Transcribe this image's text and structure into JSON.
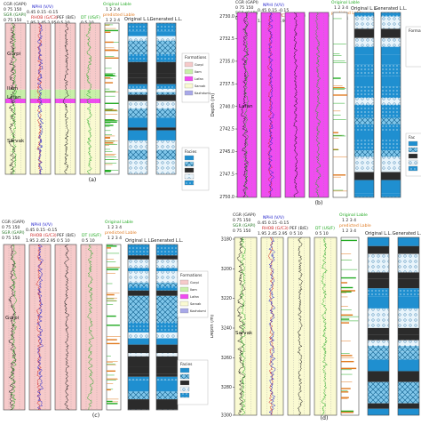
{
  "figure": {
    "panels": [
      {
        "id": "a",
        "caption": "(a)",
        "depth_axis": {
          "label": "",
          "ticks": [],
          "shown": false
        },
        "headers": {
          "cgr": "CGR (GAPI)",
          "cgr_range": "0    75   150",
          "sgr": "SGR (GAPI)",
          "sgr_range": "0    75   150",
          "nphi": "NPHI (V/V)",
          "nphi_range": "0.45  0.15 -0.15",
          "rhob": "RHOB (G/C3)",
          "rhob_range": "1.95  2.45  2.95",
          "pef": "PEF (B/E)",
          "pef_range": "0   5   10",
          "dt": "DT (US/F)",
          "dt_range": "0   5   10",
          "orig_label": "Original Lable",
          "orig_scale": "1  2  3  4",
          "pred_label": "predicted Lable",
          "pred_scale": "1  2  3  4",
          "col_orig": "Original L.L.",
          "col_gen": "Generated L.L."
        },
        "formations": [
          "Gurpi",
          "Ilam",
          "Lafan",
          "Sarvak"
        ],
        "formation_legend": {
          "title": "Formations",
          "items": [
            "Gurpi",
            "Ilam",
            "Lafan",
            "Sarvak",
            "Kazhdumi"
          ]
        },
        "facies_legend": {
          "title": "Facies",
          "items": [
            "",
            "",
            "",
            "",
            ""
          ]
        }
      },
      {
        "id": "b",
        "caption": "(b)",
        "depth_axis": {
          "label": "Depth (m)",
          "ticks": [
            "2730.0",
            "2732.5",
            "2735.0",
            "2737.5",
            "2740.0",
            "2742.5",
            "2745.0",
            "2747.5",
            "2750.0"
          ],
          "shown": true
        },
        "headers": {
          "cgr": "CGR (GAPI)",
          "cgr_range": "0    75   150",
          "sgr": "SGR (GAPI)",
          "sgr_range": "0    75   150",
          "nphi": "NPHI (V/V)",
          "nphi_range": "0.45  0.15 -0.15",
          "rhob": "RHOB (G/C3)",
          "rhob_range": "1.95  2.45  2.95",
          "pef": "PEF (B/E)",
          "pef_range": "0   5   10",
          "dt": "DT (US/F)",
          "dt_range": "0   5   10",
          "orig_label": "Original Lable",
          "orig_scale": "1  2  3  4",
          "pred_label": "predicted Lable",
          "pred_scale": "1  2  3  4",
          "col_orig": "Original L.L.",
          "col_gen": "Generated L.L."
        },
        "formations": [
          "Lafan"
        ],
        "formation_legend": {
          "title": "Format",
          "items": []
        },
        "facies_legend": {
          "title": "Fac",
          "items": []
        }
      },
      {
        "id": "c",
        "caption": "(c)",
        "depth_axis": {
          "label": "",
          "ticks": [],
          "shown": false
        },
        "headers": {
          "cgr": "CGR (GAPI)",
          "cgr_range": "0    75   150",
          "sgr": "SGR (GAPI)",
          "sgr_range": "0    75   150",
          "nphi": "NPHI (V/V)",
          "nphi_range": "0.45  0.15 -0.15",
          "rhob": "RHOB (G/C3)",
          "rhob_range": "1.95  2.45  2.95",
          "pef": "PEF (B/E)",
          "pef_range": "0   5   10",
          "dt": "DT (US/F)",
          "dt_range": "0   5   10",
          "orig_label": "Original Lable",
          "orig_scale": "1  2  3  4",
          "pred_label": "predicted Lable",
          "pred_scale": "1  2  3  4",
          "col_orig": "Original L.L.",
          "col_gen": "Generated L.L."
        },
        "formations": [
          "Gurpi"
        ],
        "formation_legend": {
          "title": "Formations",
          "items": [
            "Gurpi",
            "Ilam",
            "Lafan",
            "Sarvak",
            "Kazhdumi"
          ]
        },
        "facies_legend": {
          "title": "Facies",
          "items": [
            "",
            "",
            "",
            "",
            ""
          ]
        }
      },
      {
        "id": "d",
        "caption": "(d)",
        "depth_axis": {
          "label": "Depth (m)",
          "ticks": [
            "3180",
            "3200",
            "3220",
            "3240",
            "3260",
            "3280",
            "3300"
          ],
          "shown": true
        },
        "headers": {
          "cgr": "CGR (GAPI)",
          "cgr_range": "0    75   150",
          "sgr": "SGR (GAPI)",
          "sgr_range": "0    75   150",
          "nphi": "NPHI (V/V)",
          "nphi_range": "0.45  0.15 -0.15",
          "rhob": "RHOB (G/C3)",
          "rhob_range": "1.95  2.45  2.95",
          "pef": "PEF (B/E)",
          "pef_range": "0   5   10",
          "dt": "DT (US/F)",
          "dt_range": "0   5   10",
          "orig_label": "Original Lable",
          "orig_scale": "1  2  3  4",
          "pred_label": "predicted Lable",
          "pred_scale": "1  2  3  4",
          "col_orig": "Original L.L.",
          "col_gen": "Generated L.L."
        },
        "formations": [
          "Sarvak"
        ],
        "formation_legend": {
          "title": "",
          "items": []
        },
        "facies_legend": {
          "title": "",
          "items": []
        }
      }
    ]
  },
  "colors": {
    "gurpi": "#f6caca",
    "ilam": "#c8f0a8",
    "lafan": "#f04cf0",
    "sarvak": "#fafad2",
    "kazhdumi": "#a8a8e8",
    "nphi": "#2222cc",
    "rhob": "#cc2222",
    "dt": "#22aa22",
    "facies_blue": "#1f8fd0",
    "facies_dark": "#2b2b2b",
    "facies_hatch": "#7fc6ea",
    "facies_light": "#e8f4fb"
  }
}
